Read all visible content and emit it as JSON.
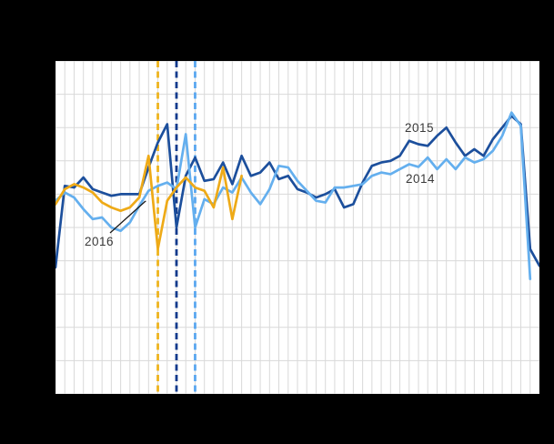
{
  "canvas": {
    "background": "#000000",
    "plot_background": "#ffffff",
    "grid_color": "#d9d9d9",
    "label_color": "#3a3a3a",
    "annotation_arrow_color": "#1a1a1a"
  },
  "chart_data": {
    "type": "line",
    "title": "",
    "xlabel": "",
    "ylabel": "",
    "x_axis": {
      "unit": "week",
      "start": 1,
      "step": 1,
      "gridlines": 53,
      "tick_labels_visible": false
    },
    "y_axis": {
      "unit": "grid_units",
      "range": [
        0,
        10
      ],
      "gridline_rows": 10,
      "tick_labels_visible": false
    },
    "grid": true,
    "series": [
      {
        "name": "2015",
        "color": "#1c4f9c",
        "x_start": 1,
        "values": [
          3.8,
          6.25,
          6.2,
          6.5,
          6.15,
          6.05,
          5.95,
          6.0,
          6.0,
          6.0,
          6.8,
          7.55,
          8.1,
          5.0,
          6.55,
          7.1,
          6.4,
          6.45,
          6.95,
          6.3,
          7.15,
          6.55,
          6.65,
          6.95,
          6.45,
          6.55,
          6.15,
          6.05,
          5.9,
          6.0,
          6.15,
          5.6,
          5.7,
          6.35,
          6.85,
          6.95,
          7.0,
          7.15,
          7.6,
          7.5,
          7.45,
          7.75,
          8.0,
          7.55,
          7.15,
          7.35,
          7.15,
          7.65,
          8.0,
          8.35,
          8.1,
          4.35,
          3.85
        ]
      },
      {
        "name": "2014",
        "color": "#64afee",
        "x_start": 1,
        "values": [
          5.8,
          6.05,
          5.9,
          5.55,
          5.25,
          5.3,
          5.0,
          4.9,
          5.15,
          5.65,
          6.1,
          6.25,
          6.35,
          6.15,
          7.8,
          5.0,
          5.85,
          5.7,
          6.2,
          6.05,
          6.5,
          6.05,
          5.7,
          6.15,
          6.85,
          6.8,
          6.4,
          6.1,
          5.8,
          5.75,
          6.2,
          6.2,
          6.25,
          6.3,
          6.55,
          6.65,
          6.6,
          6.75,
          6.9,
          6.82,
          7.1,
          6.75,
          7.05,
          6.75,
          7.1,
          6.95,
          7.05,
          7.3,
          7.75,
          8.45,
          8.05,
          3.45
        ]
      },
      {
        "name": "2016",
        "color": "#eeaa17",
        "x_start": 1,
        "values": [
          5.7,
          6.15,
          6.3,
          6.2,
          6.05,
          5.75,
          5.6,
          5.5,
          5.6,
          5.9,
          7.15,
          4.35,
          5.8,
          6.2,
          6.5,
          6.2,
          6.1,
          5.6,
          6.8,
          5.25,
          6.55
        ]
      }
    ],
    "event_markers": [
      {
        "series": "2016",
        "week": 12,
        "color": "#eeb41e"
      },
      {
        "series": "2015",
        "week": 14,
        "color": "#123a8c"
      },
      {
        "series": "2014",
        "week": 16,
        "color": "#5aa7f0"
      }
    ],
    "annotation": {
      "text": "2016",
      "points_to": {
        "series": "2016",
        "week": 10.5
      }
    },
    "legend": {
      "position": "inline-labels",
      "entries": [
        "2015",
        "2014",
        "2016"
      ]
    }
  }
}
